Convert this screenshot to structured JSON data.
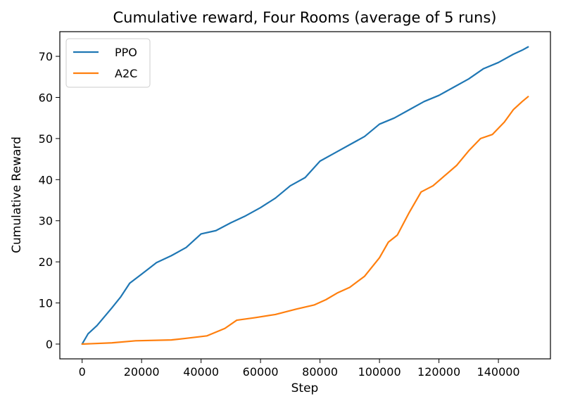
{
  "chart_data": {
    "type": "line",
    "title": "Cumulative reward, Four Rooms (average of 5 runs)",
    "xlabel": "Step",
    "ylabel": "Cumulative Reward",
    "xlim": [
      -7500,
      157500
    ],
    "ylim": [
      -3.6,
      76.0
    ],
    "x_ticks": [
      0,
      20000,
      40000,
      60000,
      80000,
      100000,
      120000,
      140000
    ],
    "y_ticks": [
      0,
      10,
      20,
      30,
      40,
      50,
      60,
      70
    ],
    "grid": false,
    "legend_position": "top-left",
    "series": [
      {
        "name": "PPO",
        "color": "#1f77b4",
        "x": [
          0,
          2000,
          5000,
          10000,
          13000,
          16000,
          20000,
          25000,
          30000,
          35000,
          40000,
          45000,
          50000,
          55000,
          60000,
          65000,
          70000,
          75000,
          80000,
          85000,
          90000,
          95000,
          100000,
          105000,
          110000,
          115000,
          120000,
          125000,
          130000,
          135000,
          140000,
          145000,
          148000,
          150000
        ],
        "y": [
          0,
          2.5,
          4.5,
          8.8,
          11.5,
          14.8,
          17.0,
          19.8,
          21.5,
          23.5,
          26.8,
          27.6,
          29.5,
          31.2,
          33.2,
          35.5,
          38.5,
          40.5,
          44.5,
          46.5,
          48.5,
          50.5,
          53.5,
          55.0,
          57.0,
          59.0,
          60.5,
          62.5,
          64.5,
          67.0,
          68.5,
          70.5,
          71.5,
          72.3
        ]
      },
      {
        "name": "A2C",
        "color": "#ff7f0e",
        "x": [
          0,
          10000,
          18000,
          30000,
          35000,
          42000,
          48000,
          52000,
          58000,
          65000,
          72000,
          78000,
          82000,
          86000,
          90000,
          95000,
          100000,
          103000,
          106000,
          110000,
          114000,
          118000,
          122000,
          126000,
          130000,
          134000,
          138000,
          142000,
          145000,
          148000,
          150000
        ],
        "y": [
          0,
          0.3,
          0.8,
          1.0,
          1.4,
          2.0,
          3.8,
          5.8,
          6.4,
          7.2,
          8.5,
          9.5,
          10.8,
          12.5,
          13.8,
          16.5,
          21.0,
          24.8,
          26.5,
          32.0,
          37.0,
          38.5,
          41.0,
          43.5,
          47.0,
          50.0,
          51.0,
          54.0,
          57.0,
          59.0,
          60.2
        ]
      }
    ]
  }
}
